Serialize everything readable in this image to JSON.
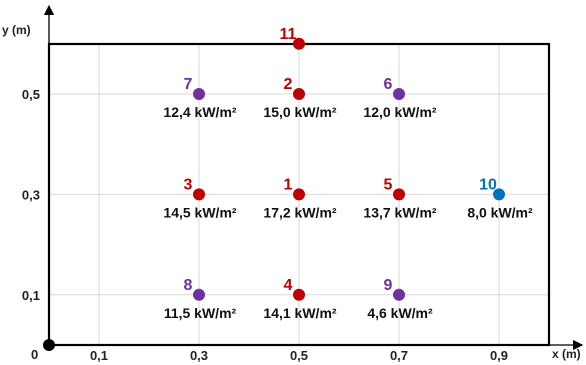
{
  "axes": {
    "x_label": "x (m)",
    "y_label": "y (m)",
    "origin_label": "0",
    "x_range": [
      0,
      1.0
    ],
    "y_range": [
      0,
      0.6
    ],
    "x_ticks": [
      {
        "value": 0.1,
        "label": "0,1"
      },
      {
        "value": 0.3,
        "label": "0,3"
      },
      {
        "value": 0.5,
        "label": "0,5"
      },
      {
        "value": 0.7,
        "label": "0,7"
      },
      {
        "value": 0.9,
        "label": "0,9"
      }
    ],
    "y_ticks": [
      {
        "value": 0.1,
        "label": "0,1"
      },
      {
        "value": 0.3,
        "label": "0,3"
      },
      {
        "value": 0.5,
        "label": "0,5"
      }
    ],
    "grid": true
  },
  "colors": {
    "red": "#c00000",
    "purple": "#7030a0",
    "blue": "#0070c0",
    "grid": "#d9d9d9",
    "frame": "#000000"
  },
  "points": [
    {
      "id": "11",
      "x": 0.5,
      "y": 0.6,
      "group": "red",
      "value": ""
    },
    {
      "id": "7",
      "x": 0.3,
      "y": 0.5,
      "group": "purple",
      "value": "12,4 kW/m²"
    },
    {
      "id": "2",
      "x": 0.5,
      "y": 0.5,
      "group": "red",
      "value": "15,0 kW/m²"
    },
    {
      "id": "6",
      "x": 0.7,
      "y": 0.5,
      "group": "purple",
      "value": "12,0 kW/m²"
    },
    {
      "id": "3",
      "x": 0.3,
      "y": 0.3,
      "group": "red",
      "value": "14,5 kW/m²"
    },
    {
      "id": "1",
      "x": 0.5,
      "y": 0.3,
      "group": "red",
      "value": "17,2 kW/m²"
    },
    {
      "id": "5",
      "x": 0.7,
      "y": 0.3,
      "group": "red",
      "value": "13,7 kW/m²"
    },
    {
      "id": "10",
      "x": 0.9,
      "y": 0.3,
      "group": "blue",
      "value": "8,0 kW/m²"
    },
    {
      "id": "8",
      "x": 0.3,
      "y": 0.1,
      "group": "purple",
      "value": "11,5 kW/m²"
    },
    {
      "id": "4",
      "x": 0.5,
      "y": 0.1,
      "group": "red",
      "value": "14,1 kW/m²"
    },
    {
      "id": "9",
      "x": 0.7,
      "y": 0.1,
      "group": "purple",
      "value": "4,6 kW/m²"
    }
  ]
}
